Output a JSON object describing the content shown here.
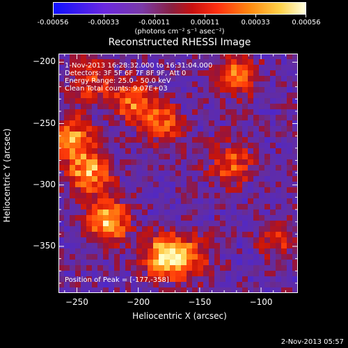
{
  "chart_data": {
    "type": "heatmap",
    "title": "Reconstructed RHESSI Image",
    "xlabel": "Heliocentric X (arcsec)",
    "ylabel": "Heliocentric Y (arcsec)",
    "xlim": [
      -265,
      -70
    ],
    "ylim": [
      -388,
      -193
    ],
    "xticks": [
      -250,
      -200,
      -150,
      -100
    ],
    "yticks": [
      -200,
      -250,
      -300,
      -350
    ],
    "colorbar": {
      "ticks": [
        "-0.00056",
        "-0.00033",
        "-0.00011",
        "0.00011",
        "0.00033",
        "0.00056"
      ],
      "range": [
        -0.00056,
        0.00056
      ],
      "units": "(photons cm⁻² s⁻¹ asec⁻²)"
    },
    "annotations": {
      "time": "1-Nov-2013 16:28:32.000 to 16:31:04.000",
      "detectors": "Detectors: 3F 5F 6F 7F 8F 9F, Att 0",
      "energy": "Energy Range: 25.0 - 50.0 keV",
      "clean": "Clean     Total counts: 9.07E+03",
      "peak": "Position of Peak = [-177,-358]"
    },
    "sources": [
      {
        "x": -177,
        "y": -358,
        "level": 1.0
      },
      {
        "x": -225,
        "y": -330,
        "level": 0.85
      },
      {
        "x": -240,
        "y": -290,
        "level": 0.75
      },
      {
        "x": -255,
        "y": -262,
        "level": 0.7
      },
      {
        "x": -205,
        "y": -232,
        "level": 0.6
      },
      {
        "x": -180,
        "y": -250,
        "level": 0.55
      },
      {
        "x": -120,
        "y": -210,
        "level": 0.6
      },
      {
        "x": -125,
        "y": -283,
        "level": 0.55
      },
      {
        "x": -85,
        "y": -345,
        "level": 0.35
      },
      {
        "x": -155,
        "y": -360,
        "level": 0.4
      },
      {
        "x": -240,
        "y": -215,
        "level": 0.45
      }
    ],
    "colors": {
      "negative": "#3a10c8",
      "background": "#6a2aa0",
      "positive_low": "#c01010",
      "positive_high": "#ffff90"
    }
  },
  "footer": {
    "timestamp": "2-Nov-2013 05:57"
  }
}
